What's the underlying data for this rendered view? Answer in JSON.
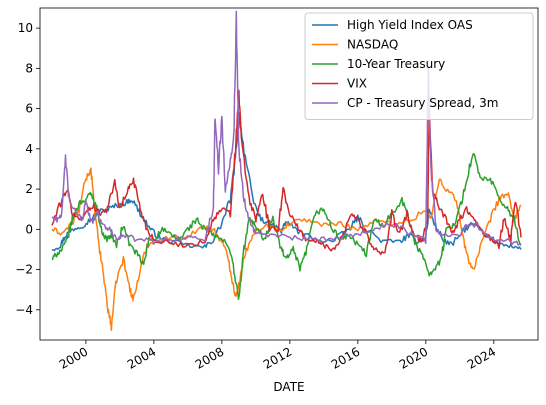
{
  "chart_data": {
    "type": "line",
    "title": "",
    "xlabel": "DATE",
    "ylabel": "",
    "xlim": [
      1997.3,
      2026.6
    ],
    "ylim": [
      -5.5,
      11.0
    ],
    "x_ticks": [
      {
        "value": 2000,
        "label": "2000"
      },
      {
        "value": 2004,
        "label": "2004"
      },
      {
        "value": 2008,
        "label": "2008"
      },
      {
        "value": 2012,
        "label": "2012"
      },
      {
        "value": 2016,
        "label": "2016"
      },
      {
        "value": 2020,
        "label": "2020"
      },
      {
        "value": 2024,
        "label": "2024"
      }
    ],
    "y_ticks": [
      {
        "value": -4,
        "label": "−4"
      },
      {
        "value": -2,
        "label": "−2"
      },
      {
        "value": 0,
        "label": "0"
      },
      {
        "value": 2,
        "label": "2"
      },
      {
        "value": 4,
        "label": "4"
      },
      {
        "value": 6,
        "label": "6"
      },
      {
        "value": 8,
        "label": "8"
      },
      {
        "value": 10,
        "label": "10"
      }
    ],
    "grid": false,
    "legend_position": "top-right",
    "series": [
      {
        "name": "High Yield Index OAS",
        "color": "#1f77b4",
        "points": [
          [
            1998.0,
            -1.0
          ],
          [
            1998.5,
            -0.8
          ],
          [
            1998.8,
            -0.3
          ],
          [
            1999.2,
            0.0
          ],
          [
            1999.8,
            0.2
          ],
          [
            2000.3,
            0.5
          ],
          [
            2000.8,
            0.9
          ],
          [
            2001.3,
            1.0
          ],
          [
            2001.8,
            1.2
          ],
          [
            2002.3,
            1.3
          ],
          [
            2002.7,
            1.5
          ],
          [
            2003.2,
            0.8
          ],
          [
            2003.8,
            0.0
          ],
          [
            2004.3,
            -0.4
          ],
          [
            2005.0,
            -0.6
          ],
          [
            2006.0,
            -0.8
          ],
          [
            2007.0,
            -0.9
          ],
          [
            2007.5,
            -0.5
          ],
          [
            2008.0,
            0.3
          ],
          [
            2008.5,
            1.5
          ],
          [
            2008.8,
            3.5
          ],
          [
            2009.0,
            5.7
          ],
          [
            2009.3,
            4.0
          ],
          [
            2009.8,
            1.5
          ],
          [
            2010.3,
            0.5
          ],
          [
            2010.8,
            0.3
          ],
          [
            2011.5,
            -0.1
          ],
          [
            2011.8,
            0.4
          ],
          [
            2012.5,
            -0.1
          ],
          [
            2013.5,
            -0.5
          ],
          [
            2014.5,
            -0.6
          ],
          [
            2015.5,
            0.0
          ],
          [
            2016.0,
            0.6
          ],
          [
            2016.5,
            0.0
          ],
          [
            2017.5,
            -0.6
          ],
          [
            2018.5,
            -0.6
          ],
          [
            2019.0,
            -0.3
          ],
          [
            2019.5,
            -0.6
          ],
          [
            2020.0,
            -0.4
          ],
          [
            2020.2,
            1.0
          ],
          [
            2020.5,
            0.3
          ],
          [
            2021.0,
            -0.5
          ],
          [
            2021.5,
            -0.8
          ],
          [
            2022.3,
            0.0
          ],
          [
            2022.8,
            0.3
          ],
          [
            2023.5,
            -0.3
          ],
          [
            2024.3,
            -0.7
          ],
          [
            2025.0,
            -0.8
          ],
          [
            2025.6,
            -1.0
          ]
        ]
      },
      {
        "name": "NASDAQ",
        "color": "#ff7f0e",
        "points": [
          [
            1998.0,
            0.0
          ],
          [
            1998.6,
            -0.2
          ],
          [
            1999.2,
            0.3
          ],
          [
            1999.6,
            1.0
          ],
          [
            2000.0,
            2.5
          ],
          [
            2000.3,
            3.0
          ],
          [
            2000.5,
            1.0
          ],
          [
            2000.8,
            -1.0
          ],
          [
            2001.0,
            -2.0
          ],
          [
            2001.3,
            -4.0
          ],
          [
            2001.5,
            -4.8
          ],
          [
            2001.8,
            -2.5
          ],
          [
            2002.2,
            -1.5
          ],
          [
            2002.6,
            -3.0
          ],
          [
            2002.8,
            -3.5
          ],
          [
            2003.2,
            -2.0
          ],
          [
            2003.6,
            -0.8
          ],
          [
            2004.0,
            -0.6
          ],
          [
            2005.0,
            -0.4
          ],
          [
            2006.0,
            -0.3
          ],
          [
            2007.0,
            0.1
          ],
          [
            2007.5,
            0.0
          ],
          [
            2008.0,
            -0.6
          ],
          [
            2008.4,
            -1.5
          ],
          [
            2008.6,
            -2.5
          ],
          [
            2008.8,
            -3.3
          ],
          [
            2009.0,
            -2.8
          ],
          [
            2009.3,
            -1.5
          ],
          [
            2009.8,
            -0.2
          ],
          [
            2010.5,
            0.2
          ],
          [
            2011.5,
            0.0
          ],
          [
            2012.0,
            0.3
          ],
          [
            2013.0,
            0.5
          ],
          [
            2014.0,
            0.2
          ],
          [
            2015.0,
            0.3
          ],
          [
            2016.0,
            0.0
          ],
          [
            2017.0,
            0.4
          ],
          [
            2018.0,
            0.3
          ],
          [
            2019.0,
            0.4
          ],
          [
            2020.0,
            1.0
          ],
          [
            2020.3,
            0.5
          ],
          [
            2020.8,
            2.5
          ],
          [
            2021.2,
            2.0
          ],
          [
            2021.8,
            1.5
          ],
          [
            2022.2,
            -0.5
          ],
          [
            2022.5,
            -1.5
          ],
          [
            2022.8,
            -2.0
          ],
          [
            2023.2,
            -1.0
          ],
          [
            2023.8,
            0.5
          ],
          [
            2024.3,
            1.5
          ],
          [
            2024.8,
            1.8
          ],
          [
            2025.2,
            0.5
          ],
          [
            2025.6,
            1.2
          ]
        ]
      },
      {
        "name": "10-Year Treasury",
        "color": "#2ca02c",
        "points": [
          [
            1998.0,
            -1.5
          ],
          [
            1998.3,
            -1.2
          ],
          [
            1998.6,
            -1.0
          ],
          [
            1998.9,
            -0.5
          ],
          [
            1999.2,
            0.5
          ],
          [
            1999.6,
            1.3
          ],
          [
            2000.0,
            1.5
          ],
          [
            2000.3,
            1.8
          ],
          [
            2000.6,
            1.2
          ],
          [
            2000.9,
            0.0
          ],
          [
            2001.2,
            -0.5
          ],
          [
            2001.5,
            -0.3
          ],
          [
            2001.8,
            -0.8
          ],
          [
            2002.2,
            0.2
          ],
          [
            2002.6,
            -0.8
          ],
          [
            2003.0,
            -1.2
          ],
          [
            2003.4,
            -1.8
          ],
          [
            2003.7,
            -0.5
          ],
          [
            2004.0,
            -0.5
          ],
          [
            2004.5,
            0.0
          ],
          [
            2005.0,
            -0.3
          ],
          [
            2005.5,
            -0.5
          ],
          [
            2006.0,
            0.0
          ],
          [
            2006.5,
            0.5
          ],
          [
            2007.0,
            0.0
          ],
          [
            2007.5,
            -0.3
          ],
          [
            2008.0,
            -0.5
          ],
          [
            2008.5,
            -1.0
          ],
          [
            2008.8,
            -2.5
          ],
          [
            2009.0,
            -3.5
          ],
          [
            2009.3,
            -1.0
          ],
          [
            2009.6,
            0.5
          ],
          [
            2010.0,
            0.2
          ],
          [
            2010.5,
            -0.5
          ],
          [
            2011.0,
            0.5
          ],
          [
            2011.5,
            -1.0
          ],
          [
            2011.8,
            -1.5
          ],
          [
            2012.2,
            -1.0
          ],
          [
            2012.6,
            -2.0
          ],
          [
            2013.0,
            -1.0
          ],
          [
            2013.5,
            0.8
          ],
          [
            2014.0,
            1.0
          ],
          [
            2014.5,
            0.0
          ],
          [
            2015.0,
            -0.5
          ],
          [
            2015.5,
            -0.3
          ],
          [
            2016.0,
            -0.8
          ],
          [
            2016.5,
            -1.2
          ],
          [
            2017.0,
            0.5
          ],
          [
            2017.5,
            0.2
          ],
          [
            2018.0,
            0.8
          ],
          [
            2018.6,
            1.5
          ],
          [
            2019.0,
            0.5
          ],
          [
            2019.5,
            -1.0
          ],
          [
            2019.8,
            -1.2
          ],
          [
            2020.2,
            -2.2
          ],
          [
            2020.5,
            -2.0
          ],
          [
            2020.9,
            -1.5
          ],
          [
            2021.2,
            0.0
          ],
          [
            2021.6,
            0.2
          ],
          [
            2022.0,
            1.0
          ],
          [
            2022.4,
            2.5
          ],
          [
            2022.8,
            3.8
          ],
          [
            2023.2,
            2.5
          ],
          [
            2023.8,
            2.5
          ],
          [
            2024.3,
            1.5
          ],
          [
            2024.8,
            1.0
          ],
          [
            2025.2,
            0.5
          ],
          [
            2025.6,
            -0.8
          ]
        ]
      },
      {
        "name": "VIX",
        "color": "#d62728",
        "points": [
          [
            1998.0,
            0.2
          ],
          [
            1998.6,
            1.5
          ],
          [
            1998.9,
            2.0
          ],
          [
            1999.2,
            0.8
          ],
          [
            1999.6,
            0.5
          ],
          [
            2000.0,
            0.8
          ],
          [
            2000.4,
            1.2
          ],
          [
            2000.8,
            0.8
          ],
          [
            2001.2,
            1.0
          ],
          [
            2001.7,
            2.3
          ],
          [
            2002.0,
            1.0
          ],
          [
            2002.5,
            2.0
          ],
          [
            2002.8,
            2.5
          ],
          [
            2003.2,
            1.0
          ],
          [
            2003.6,
            0.0
          ],
          [
            2004.0,
            -0.5
          ],
          [
            2005.0,
            -0.7
          ],
          [
            2006.0,
            -0.8
          ],
          [
            2007.0,
            -0.6
          ],
          [
            2007.5,
            0.5
          ],
          [
            2008.0,
            1.0
          ],
          [
            2008.5,
            0.8
          ],
          [
            2008.8,
            4.0
          ],
          [
            2009.0,
            6.7
          ],
          [
            2009.2,
            4.0
          ],
          [
            2009.6,
            1.5
          ],
          [
            2010.0,
            0.5
          ],
          [
            2010.4,
            1.8
          ],
          [
            2010.8,
            0.0
          ],
          [
            2011.3,
            0.0
          ],
          [
            2011.6,
            2.0
          ],
          [
            2012.0,
            0.8
          ],
          [
            2012.5,
            0.0
          ],
          [
            2013.0,
            -0.5
          ],
          [
            2013.6,
            -0.6
          ],
          [
            2014.0,
            -0.8
          ],
          [
            2014.5,
            -1.0
          ],
          [
            2015.0,
            -0.5
          ],
          [
            2015.6,
            0.8
          ],
          [
            2016.0,
            0.5
          ],
          [
            2016.6,
            -0.4
          ],
          [
            2017.0,
            -1.0
          ],
          [
            2017.6,
            -1.2
          ],
          [
            2018.0,
            0.8
          ],
          [
            2018.4,
            -0.3
          ],
          [
            2018.9,
            0.8
          ],
          [
            2019.3,
            -0.3
          ],
          [
            2019.8,
            -0.6
          ],
          [
            2020.1,
            0.5
          ],
          [
            2020.2,
            6.0
          ],
          [
            2020.4,
            2.0
          ],
          [
            2020.8,
            1.0
          ],
          [
            2021.2,
            0.5
          ],
          [
            2021.6,
            -0.2
          ],
          [
            2022.0,
            0.5
          ],
          [
            2022.4,
            1.0
          ],
          [
            2022.8,
            0.5
          ],
          [
            2023.2,
            0.0
          ],
          [
            2023.8,
            -0.5
          ],
          [
            2024.3,
            -0.8
          ],
          [
            2024.6,
            0.5
          ],
          [
            2025.0,
            -0.5
          ],
          [
            2025.3,
            1.5
          ],
          [
            2025.6,
            -0.4
          ]
        ]
      },
      {
        "name": "CP - Treasury Spread, 3m",
        "color": "#9467bd",
        "points": [
          [
            1998.0,
            0.6
          ],
          [
            1998.3,
            0.5
          ],
          [
            1998.6,
            0.8
          ],
          [
            1998.8,
            3.6
          ],
          [
            1999.0,
            1.5
          ],
          [
            1999.4,
            0.8
          ],
          [
            1999.8,
            0.5
          ],
          [
            2000.0,
            1.5
          ],
          [
            2000.3,
            0.3
          ],
          [
            2000.7,
            0.8
          ],
          [
            2001.0,
            0.2
          ],
          [
            2001.4,
            0.0
          ],
          [
            2001.8,
            -0.4
          ],
          [
            2002.2,
            -0.3
          ],
          [
            2003.0,
            -0.5
          ],
          [
            2004.0,
            -0.6
          ],
          [
            2005.0,
            -0.5
          ],
          [
            2006.0,
            -0.4
          ],
          [
            2007.0,
            -0.5
          ],
          [
            2007.5,
            1.0
          ],
          [
            2007.6,
            5.7
          ],
          [
            2007.8,
            3.0
          ],
          [
            2008.0,
            5.6
          ],
          [
            2008.2,
            2.0
          ],
          [
            2008.5,
            3.5
          ],
          [
            2008.7,
            4.5
          ],
          [
            2008.85,
            10.5
          ],
          [
            2009.0,
            4.0
          ],
          [
            2009.3,
            1.5
          ],
          [
            2009.6,
            0.5
          ],
          [
            2010.0,
            -0.2
          ],
          [
            2011.0,
            -0.3
          ],
          [
            2012.0,
            -0.4
          ],
          [
            2013.0,
            -0.5
          ],
          [
            2014.0,
            -0.5
          ],
          [
            2015.0,
            -0.4
          ],
          [
            2016.0,
            -0.2
          ],
          [
            2017.0,
            0.0
          ],
          [
            2018.0,
            0.3
          ],
          [
            2019.0,
            -0.2
          ],
          [
            2020.0,
            -0.3
          ],
          [
            2020.15,
            8.0
          ],
          [
            2020.3,
            3.0
          ],
          [
            2020.6,
            0.0
          ],
          [
            2021.0,
            -0.3
          ],
          [
            2022.0,
            -0.2
          ],
          [
            2022.5,
            0.3
          ],
          [
            2023.0,
            0.2
          ],
          [
            2024.0,
            -0.5
          ],
          [
            2025.0,
            -0.6
          ],
          [
            2025.6,
            -0.7
          ]
        ]
      }
    ]
  }
}
